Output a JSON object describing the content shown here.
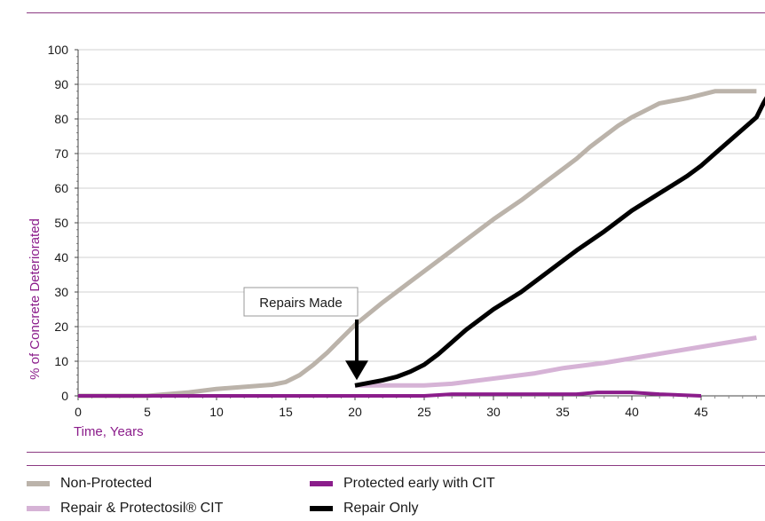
{
  "chart_data": {
    "type": "line",
    "ylabel": "% of Concrete Deteriorated",
    "xlabel": "Time, Years",
    "xlim": [
      0,
      49
    ],
    "ylim": [
      0,
      100
    ],
    "xticks": [
      0,
      5,
      10,
      15,
      20,
      25,
      30,
      35,
      40,
      45
    ],
    "yticks": [
      0,
      10,
      20,
      30,
      40,
      50,
      60,
      70,
      80,
      90,
      100
    ],
    "annotation": {
      "text": "Repairs Made",
      "x": 20,
      "y": 3
    },
    "series": [
      {
        "name": "Non-Protected",
        "color": "#bbb3aa",
        "width": 5,
        "points": [
          [
            0,
            0
          ],
          [
            5,
            0
          ],
          [
            8,
            1
          ],
          [
            10,
            2
          ],
          [
            12,
            2.6
          ],
          [
            14,
            3.2
          ],
          [
            15,
            4
          ],
          [
            16,
            6
          ],
          [
            17,
            9
          ],
          [
            18,
            12.5
          ],
          [
            19,
            16.5
          ],
          [
            20,
            20.5
          ],
          [
            22,
            27
          ],
          [
            24,
            33
          ],
          [
            26,
            39
          ],
          [
            28,
            45
          ],
          [
            30,
            51
          ],
          [
            32,
            56.5
          ],
          [
            34,
            62.5
          ],
          [
            36,
            68.5
          ],
          [
            37,
            72
          ],
          [
            38,
            75
          ],
          [
            39,
            78
          ],
          [
            40,
            80.5
          ],
          [
            41,
            82.5
          ],
          [
            42,
            84.5
          ],
          [
            44,
            86
          ],
          [
            45,
            87
          ],
          [
            46,
            88
          ],
          [
            49,
            88
          ]
        ]
      },
      {
        "name": "Repair & Protectosil® CIT",
        "color": "#d6b3d6",
        "width": 5,
        "points": [
          [
            20,
            3
          ],
          [
            25,
            3
          ],
          [
            27,
            3.5
          ],
          [
            30,
            5
          ],
          [
            33,
            6.5
          ],
          [
            35,
            8
          ],
          [
            38,
            9.5
          ],
          [
            41,
            11.5
          ],
          [
            44,
            13.5
          ],
          [
            47,
            15.5
          ],
          [
            49,
            16.8
          ]
        ]
      },
      {
        "name": "Protected early with CIT",
        "color": "#8b1d8b",
        "width": 4,
        "points": [
          [
            0,
            0
          ],
          [
            20,
            0
          ],
          [
            25,
            0
          ],
          [
            27,
            0.5
          ],
          [
            30,
            0.5
          ],
          [
            34,
            0.5
          ],
          [
            36,
            0.5
          ],
          [
            37.5,
            1
          ],
          [
            40,
            1
          ],
          [
            42,
            0.5
          ],
          [
            45,
            0
          ]
        ]
      },
      {
        "name": "Repair Only",
        "color": "#000000",
        "width": 5,
        "points": [
          [
            20,
            3
          ],
          [
            22,
            4.5
          ],
          [
            23,
            5.5
          ],
          [
            24,
            7
          ],
          [
            25,
            9
          ],
          [
            26,
            12
          ],
          [
            27,
            15.5
          ],
          [
            28,
            19
          ],
          [
            30,
            25
          ],
          [
            32,
            30
          ],
          [
            34,
            36
          ],
          [
            36,
            42
          ],
          [
            38,
            47.5
          ],
          [
            40,
            53.5
          ],
          [
            42,
            58.5
          ],
          [
            44,
            63.5
          ],
          [
            45,
            66.5
          ],
          [
            46,
            70
          ],
          [
            47,
            73.5
          ],
          [
            48,
            77
          ],
          [
            49,
            80.5
          ],
          [
            49.5,
            84.5
          ],
          [
            50,
            87.5
          ]
        ]
      }
    ]
  }
}
